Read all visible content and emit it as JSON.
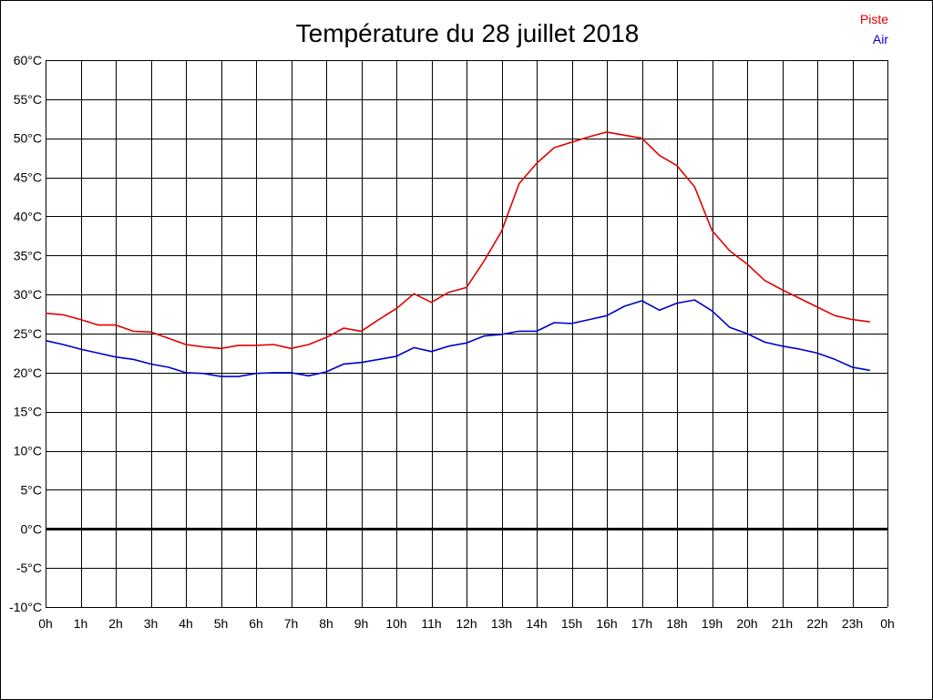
{
  "chart_data": {
    "type": "line",
    "title": "Température du 28 juillet 2018",
    "xlabel": "",
    "ylabel": "",
    "ylim": [
      -10,
      60
    ],
    "y_ticks": [
      "60°C",
      "55°C",
      "50°C",
      "45°C",
      "40°C",
      "35°C",
      "30°C",
      "25°C",
      "20°C",
      "15°C",
      "10°C",
      "5°C",
      "0°C",
      "-5°C",
      "-10°C"
    ],
    "x_ticks": [
      "0h",
      "1h",
      "2h",
      "3h",
      "4h",
      "5h",
      "6h",
      "7h",
      "8h",
      "9h",
      "10h",
      "11h",
      "12h",
      "13h",
      "14h",
      "15h",
      "16h",
      "17h",
      "18h",
      "19h",
      "20h",
      "21h",
      "22h",
      "23h",
      "0h"
    ],
    "xlim": [
      0,
      24
    ],
    "grid": true,
    "legend_position": "top-right",
    "zero_line": true,
    "series": [
      {
        "name": "Piste",
        "color": "#e00000",
        "x": [
          0,
          0.5,
          1,
          1.5,
          2,
          2.5,
          3,
          3.5,
          4,
          4.5,
          5,
          5.5,
          6,
          6.5,
          7,
          7.5,
          8,
          8.5,
          9,
          9.5,
          10,
          10.5,
          11,
          11.5,
          12,
          12.5,
          13,
          13.5,
          14,
          14.5,
          15,
          15.5,
          16,
          16.5,
          17,
          17.5,
          18,
          18.5,
          19,
          19.5,
          20,
          20.5,
          21,
          21.5,
          22,
          22.5,
          23,
          23.5
        ],
        "values": [
          27.6,
          27.4,
          26.8,
          26.1,
          26.1,
          25.3,
          25.2,
          24.4,
          23.6,
          23.3,
          23.1,
          23.5,
          23.5,
          23.6,
          23.1,
          23.6,
          24.5,
          25.7,
          25.3,
          26.8,
          28.2,
          30.1,
          29.0,
          30.3,
          30.9,
          34.3,
          38.1,
          44.2,
          46.8,
          48.8,
          49.5,
          50.2,
          50.8,
          50.4,
          50.0,
          47.8,
          46.5,
          43.8,
          38.2,
          35.6,
          33.9,
          31.8,
          30.6,
          29.5,
          28.4,
          27.3,
          26.8,
          26.5
        ]
      },
      {
        "name": "Air",
        "color": "#0000cc",
        "x": [
          0,
          0.5,
          1,
          1.5,
          2,
          2.5,
          3,
          3.5,
          4,
          4.5,
          5,
          5.5,
          6,
          6.5,
          7,
          7.5,
          8,
          8.5,
          9,
          9.5,
          10,
          10.5,
          11,
          11.5,
          12,
          12.5,
          13,
          13.5,
          14,
          14.5,
          15,
          15.5,
          16,
          16.5,
          17,
          17.5,
          18,
          18.5,
          19,
          19.5,
          20,
          20.5,
          21,
          21.5,
          22,
          22.5,
          23,
          23.5
        ],
        "values": [
          24.1,
          23.6,
          23.0,
          22.5,
          22.0,
          21.7,
          21.1,
          20.7,
          20.0,
          19.9,
          19.5,
          19.5,
          19.9,
          20.0,
          20.0,
          19.6,
          20.1,
          21.1,
          21.3,
          21.7,
          22.1,
          23.2,
          22.7,
          23.4,
          23.8,
          24.7,
          24.9,
          25.3,
          25.3,
          26.4,
          26.3,
          26.8,
          27.3,
          28.5,
          29.2,
          28.0,
          28.9,
          29.3,
          27.9,
          25.8,
          25.0,
          23.9,
          23.4,
          23.0,
          22.5,
          21.7,
          20.7,
          20.3
        ]
      }
    ]
  }
}
